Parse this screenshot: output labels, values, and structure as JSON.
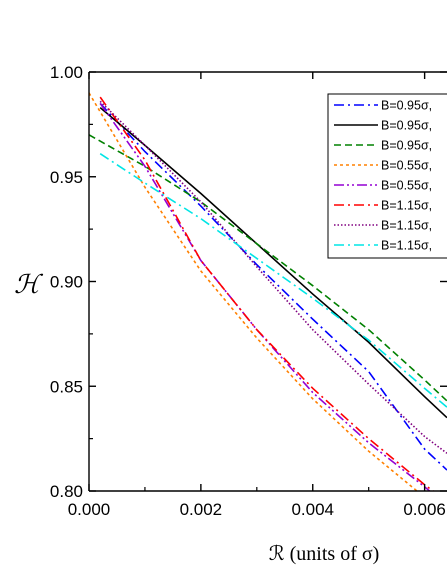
{
  "chart_data": {
    "type": "line",
    "xlabel": "ℛ (units of σ)",
    "ylabel": "ℋ",
    "xlim": [
      0.0,
      0.0064
    ],
    "ylim": [
      0.8,
      1.0
    ],
    "xticks": [
      0.0,
      0.002,
      0.004,
      0.006
    ],
    "xtick_labels": [
      "0.000",
      "0.002",
      "0.004",
      "0.006"
    ],
    "yticks": [
      0.8,
      0.85,
      0.9,
      0.95,
      1.0
    ],
    "ytick_labels": [
      "0.80",
      "0.85",
      "0.90",
      "0.95",
      "1.00"
    ],
    "grid": false,
    "legend_position": "top-right",
    "series": [
      {
        "name": "B=0.95σ,",
        "color": "#0000ff",
        "dash": "10,4,2,4",
        "x": [
          0.0002,
          0.001,
          0.002,
          0.003,
          0.004,
          0.005,
          0.006,
          0.0064
        ],
        "y": [
          0.985,
          0.962,
          0.936,
          0.908,
          0.882,
          0.857,
          0.82,
          0.81
        ]
      },
      {
        "name": "B=0.95σ,",
        "color": "#000000",
        "dash": "",
        "x": [
          0.0002,
          0.001,
          0.002,
          0.003,
          0.004,
          0.005,
          0.006,
          0.0064
        ],
        "y": [
          0.983,
          0.965,
          0.942,
          0.918,
          0.894,
          0.871,
          0.845,
          0.835
        ]
      },
      {
        "name": "B=0.95σ,",
        "color": "#008000",
        "dash": "7,4",
        "x": [
          0.0,
          0.001,
          0.002,
          0.003,
          0.004,
          0.005,
          0.006,
          0.0064
        ],
        "y": [
          0.97,
          0.955,
          0.938,
          0.918,
          0.898,
          0.877,
          0.853,
          0.843
        ]
      },
      {
        "name": "B=0.55σ,",
        "color": "#ff8000",
        "dash": "3,3",
        "x": [
          0.0,
          0.001,
          0.002,
          0.003,
          0.004,
          0.005,
          0.006,
          0.0064
        ],
        "y": [
          0.99,
          0.945,
          0.905,
          0.873,
          0.844,
          0.819,
          0.797,
          0.788
        ]
      },
      {
        "name": "B=0.55σ,",
        "color": "#9400d3",
        "dash": "10,3,2,3,2,3",
        "x": [
          0.0002,
          0.001,
          0.002,
          0.003,
          0.004,
          0.005,
          0.006,
          0.0064
        ],
        "y": [
          0.985,
          0.955,
          0.91,
          0.877,
          0.847,
          0.823,
          0.802,
          0.793
        ]
      },
      {
        "name": "B=1.15σ,",
        "color": "#ff0000",
        "dash": "10,4,2,4",
        "x": [
          0.0002,
          0.001,
          0.002,
          0.003,
          0.004,
          0.005,
          0.006,
          0.0064
        ],
        "y": [
          0.988,
          0.958,
          0.91,
          0.877,
          0.849,
          0.825,
          0.803,
          0.795
        ]
      },
      {
        "name": "B=1.15σ,",
        "color": "#800080",
        "dash": "1.5,2",
        "x": [
          0.0002,
          0.001,
          0.002,
          0.003,
          0.004,
          0.005,
          0.006,
          0.0064
        ],
        "y": [
          0.986,
          0.965,
          0.938,
          0.907,
          0.877,
          0.851,
          0.826,
          0.818
        ]
      },
      {
        "name": "B=1.15σ,",
        "color": "#00e5e5",
        "dash": "10,4,2,4",
        "x": [
          0.0002,
          0.001,
          0.002,
          0.003,
          0.004,
          0.005,
          0.006,
          0.0064
        ],
        "y": [
          0.961,
          0.947,
          0.93,
          0.911,
          0.892,
          0.872,
          0.849,
          0.84
        ]
      }
    ]
  }
}
